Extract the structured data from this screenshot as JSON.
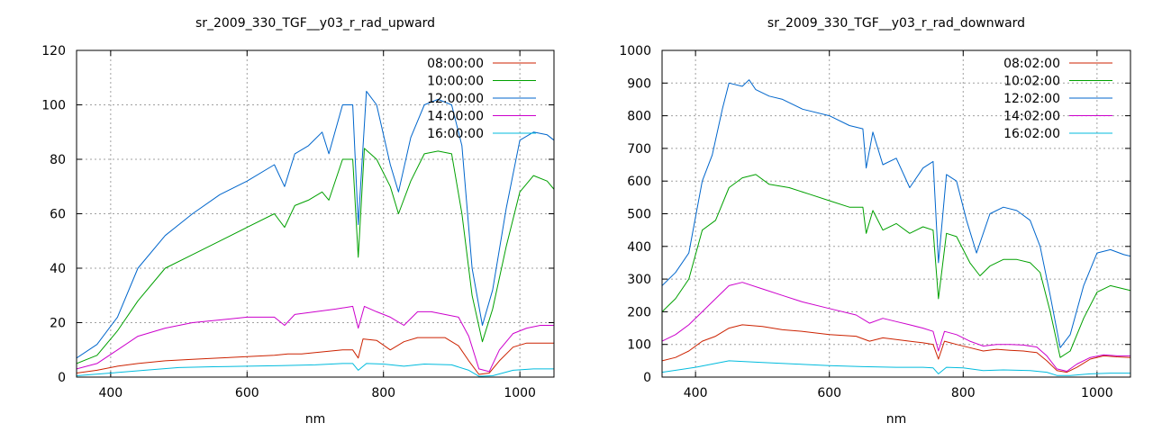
{
  "chart_data": [
    {
      "type": "line",
      "title": "sr_2009_330_TGF__y03_r_rad_upward",
      "xlabel": "nm",
      "ylabel": "",
      "xlim": [
        350,
        1050
      ],
      "ylim": [
        0,
        120
      ],
      "xticks": [
        400,
        600,
        800,
        1000
      ],
      "yticks": [
        0,
        20,
        40,
        60,
        80,
        100,
        120
      ],
      "grid": true,
      "legend_position": "top-right",
      "series": [
        {
          "name": "08:00:00",
          "color": "#cc2200",
          "x": [
            350,
            380,
            410,
            440,
            480,
            520,
            560,
            600,
            640,
            660,
            680,
            700,
            720,
            740,
            755,
            763,
            770,
            790,
            810,
            830,
            850,
            870,
            890,
            910,
            925,
            940,
            955,
            970,
            990,
            1010,
            1030,
            1050
          ],
          "y": [
            1.5,
            2.5,
            4,
            5,
            6,
            6.5,
            7,
            7.5,
            8,
            8.5,
            8.5,
            9,
            9.5,
            10,
            10,
            7,
            14,
            13.5,
            10,
            13,
            14.5,
            14.5,
            14.5,
            11.5,
            6,
            1,
            1.5,
            6,
            11,
            12.5,
            12.5,
            12.5
          ]
        },
        {
          "name": "10:00:00",
          "color": "#00a000",
          "x": [
            350,
            380,
            410,
            440,
            480,
            520,
            560,
            600,
            640,
            655,
            670,
            690,
            710,
            720,
            740,
            755,
            763,
            772,
            790,
            810,
            822,
            840,
            860,
            880,
            900,
            915,
            930,
            945,
            960,
            980,
            1000,
            1020,
            1040,
            1050
          ],
          "y": [
            5,
            8,
            17,
            28,
            40,
            45,
            50,
            55,
            60,
            55,
            63,
            65,
            68,
            65,
            80,
            80,
            44,
            84,
            80,
            70,
            60,
            72,
            82,
            83,
            82,
            60,
            30,
            13,
            25,
            48,
            68,
            74,
            72,
            69
          ]
        },
        {
          "name": "12:00:00",
          "color": "#0066cc",
          "x": [
            350,
            380,
            410,
            440,
            480,
            520,
            560,
            600,
            640,
            655,
            670,
            690,
            710,
            720,
            740,
            755,
            763,
            775,
            790,
            810,
            822,
            840,
            860,
            880,
            900,
            915,
            930,
            945,
            960,
            980,
            1000,
            1020,
            1040,
            1050
          ],
          "y": [
            7,
            12,
            22,
            40,
            52,
            60,
            67,
            72,
            78,
            70,
            82,
            85,
            90,
            82,
            100,
            100,
            56,
            105,
            100,
            78,
            68,
            88,
            100,
            102,
            100,
            85,
            40,
            19,
            32,
            62,
            87,
            90,
            89,
            87
          ]
        },
        {
          "name": "14:00:00",
          "color": "#cc00cc",
          "x": [
            350,
            380,
            410,
            440,
            480,
            520,
            560,
            600,
            640,
            655,
            670,
            700,
            730,
            755,
            763,
            772,
            790,
            810,
            830,
            850,
            870,
            890,
            910,
            925,
            940,
            955,
            970,
            990,
            1010,
            1030,
            1050
          ],
          "y": [
            3,
            5,
            10,
            15,
            18,
            20,
            21,
            22,
            22,
            19,
            23,
            24,
            25,
            26,
            18,
            26,
            24,
            22,
            19,
            24,
            24,
            23,
            22,
            15,
            3,
            2,
            10,
            16,
            18,
            19,
            19
          ]
        },
        {
          "name": "16:00:00",
          "color": "#00bbdd",
          "x": [
            350,
            400,
            450,
            500,
            550,
            600,
            650,
            700,
            740,
            755,
            763,
            775,
            800,
            830,
            860,
            900,
            925,
            940,
            960,
            990,
            1020,
            1050
          ],
          "y": [
            0.5,
            1.5,
            2.5,
            3.5,
            3.8,
            4,
            4.2,
            4.5,
            5,
            5,
            2.5,
            5,
            4.8,
            4,
            4.8,
            4.5,
            2.5,
            0.3,
            0.5,
            2.5,
            3,
            3
          ]
        }
      ]
    },
    {
      "type": "line",
      "title": "sr_2009_330_TGF__y03_r_rad_downward",
      "xlabel": "nm",
      "ylabel": "",
      "xlim": [
        350,
        1050
      ],
      "ylim": [
        0,
        1000
      ],
      "xticks": [
        400,
        600,
        800,
        1000
      ],
      "yticks": [
        0,
        100,
        200,
        300,
        400,
        500,
        600,
        700,
        800,
        900,
        1000
      ],
      "grid": true,
      "legend_position": "top-right",
      "series": [
        {
          "name": "08:02:00",
          "color": "#cc2200",
          "x": [
            350,
            370,
            390,
            410,
            430,
            450,
            470,
            500,
            530,
            560,
            600,
            640,
            660,
            680,
            700,
            720,
            740,
            755,
            763,
            772,
            790,
            810,
            830,
            850,
            870,
            890,
            910,
            925,
            940,
            955,
            970,
            990,
            1010,
            1030,
            1050
          ],
          "y": [
            50,
            60,
            80,
            110,
            125,
            150,
            160,
            155,
            145,
            140,
            130,
            125,
            110,
            120,
            115,
            110,
            105,
            100,
            55,
            110,
            100,
            90,
            80,
            85,
            82,
            80,
            75,
            50,
            20,
            15,
            30,
            55,
            65,
            62,
            60
          ]
        },
        {
          "name": "10:02:00",
          "color": "#00a000",
          "x": [
            350,
            370,
            390,
            410,
            430,
            450,
            470,
            490,
            510,
            540,
            570,
            600,
            630,
            650,
            655,
            665,
            680,
            700,
            720,
            740,
            755,
            763,
            775,
            790,
            810,
            825,
            840,
            860,
            880,
            900,
            915,
            930,
            945,
            960,
            980,
            1000,
            1020,
            1040,
            1050
          ],
          "y": [
            200,
            240,
            300,
            450,
            480,
            580,
            610,
            620,
            590,
            580,
            560,
            540,
            520,
            520,
            440,
            510,
            450,
            470,
            440,
            460,
            450,
            240,
            440,
            430,
            350,
            310,
            340,
            360,
            360,
            350,
            320,
            200,
            60,
            80,
            180,
            260,
            280,
            270,
            265
          ]
        },
        {
          "name": "12:02:00",
          "color": "#0066cc",
          "x": [
            350,
            370,
            390,
            410,
            425,
            440,
            450,
            470,
            480,
            490,
            510,
            530,
            560,
            600,
            630,
            650,
            655,
            665,
            680,
            700,
            720,
            740,
            755,
            763,
            775,
            790,
            805,
            820,
            840,
            860,
            880,
            900,
            915,
            930,
            945,
            960,
            980,
            1000,
            1020,
            1040,
            1050
          ],
          "y": [
            280,
            320,
            380,
            600,
            680,
            820,
            900,
            890,
            910,
            880,
            860,
            850,
            820,
            800,
            770,
            760,
            640,
            750,
            650,
            670,
            580,
            640,
            660,
            350,
            620,
            600,
            480,
            380,
            500,
            520,
            510,
            480,
            400,
            250,
            90,
            130,
            280,
            380,
            390,
            375,
            370
          ]
        },
        {
          "name": "14:02:00",
          "color": "#cc00cc",
          "x": [
            350,
            370,
            390,
            410,
            430,
            450,
            470,
            500,
            530,
            560,
            600,
            640,
            660,
            680,
            700,
            720,
            740,
            755,
            763,
            772,
            790,
            810,
            830,
            850,
            870,
            890,
            910,
            925,
            940,
            955,
            970,
            990,
            1010,
            1030,
            1050
          ],
          "y": [
            110,
            130,
            160,
            200,
            240,
            280,
            290,
            270,
            250,
            230,
            210,
            190,
            165,
            180,
            170,
            160,
            150,
            140,
            80,
            140,
            130,
            110,
            95,
            100,
            100,
            98,
            92,
            65,
            25,
            18,
            40,
            60,
            68,
            65,
            65
          ]
        },
        {
          "name": "16:02:00",
          "color": "#00bbdd",
          "x": [
            350,
            400,
            450,
            500,
            550,
            600,
            650,
            700,
            740,
            755,
            763,
            775,
            800,
            830,
            860,
            900,
            925,
            940,
            960,
            990,
            1020,
            1050
          ],
          "y": [
            15,
            30,
            50,
            45,
            40,
            35,
            32,
            30,
            30,
            28,
            10,
            30,
            28,
            20,
            22,
            20,
            15,
            5,
            5,
            10,
            12,
            12
          ]
        }
      ]
    }
  ]
}
